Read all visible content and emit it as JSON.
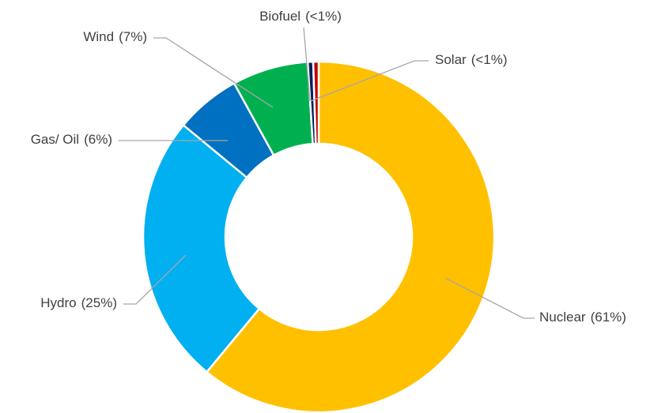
{
  "chart_data": {
    "type": "donut",
    "categories": [
      "Nuclear",
      "Hydro",
      "Gas/ Oil",
      "Wind",
      "Biofuel",
      "Solar"
    ],
    "values": [
      61,
      25,
      6,
      7,
      0.5,
      0.5
    ],
    "value_labels": [
      "(61%)",
      "(25%)",
      "(6%)",
      "(7%)",
      "(<1%)",
      "(<1%)"
    ],
    "colors": [
      "#FFC000",
      "#00B0F0",
      "#0070C0",
      "#00B050",
      "#002060",
      "#C00000"
    ]
  }
}
